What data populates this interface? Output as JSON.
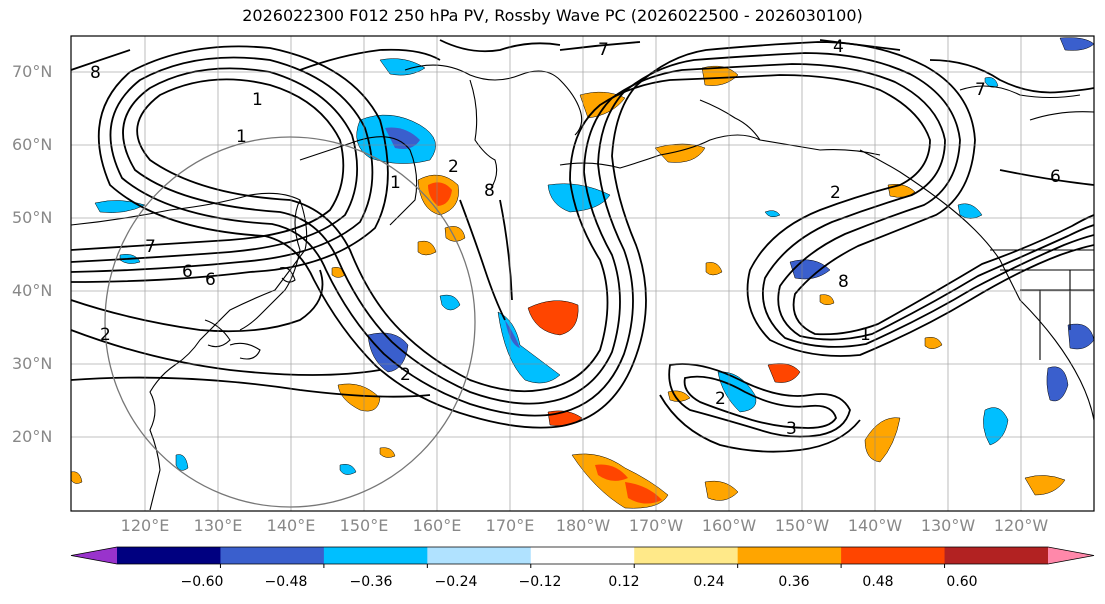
{
  "title": "2026022300 F012 250 hPa PV, Rossby Wave PC (2026022500 - 2026030100)",
  "lat_labels": [
    "70°N",
    "60°N",
    "50°N",
    "40°N",
    "30°N",
    "20°N"
  ],
  "lon_labels": [
    "120°E",
    "130°E",
    "140°E",
    "150°E",
    "160°E",
    "170°E",
    "180°W",
    "170°W",
    "160°W",
    "150°W",
    "140°W",
    "130°W",
    "120°W"
  ],
  "colorbar": {
    "colors": [
      "#9933cc",
      "#000080",
      "#3a5fcd",
      "#00bfff",
      "#b0e2ff",
      "#ffffff",
      "#ffe989",
      "#ffa500",
      "#ff4500",
      "#b22222",
      "#ff88aa"
    ],
    "tick_labels": [
      "−0.60",
      "−0.48",
      "−0.36",
      "−0.24",
      "−0.12",
      "0.12",
      "0.24",
      "0.36",
      "0.48",
      "0.60"
    ]
  },
  "contour_labels": [
    "1",
    "1",
    "1",
    "1",
    "2",
    "2",
    "2",
    "2",
    "2",
    "3",
    "4",
    "6",
    "6",
    "6",
    "7",
    "7",
    "7",
    "8",
    "8",
    "8"
  ]
}
